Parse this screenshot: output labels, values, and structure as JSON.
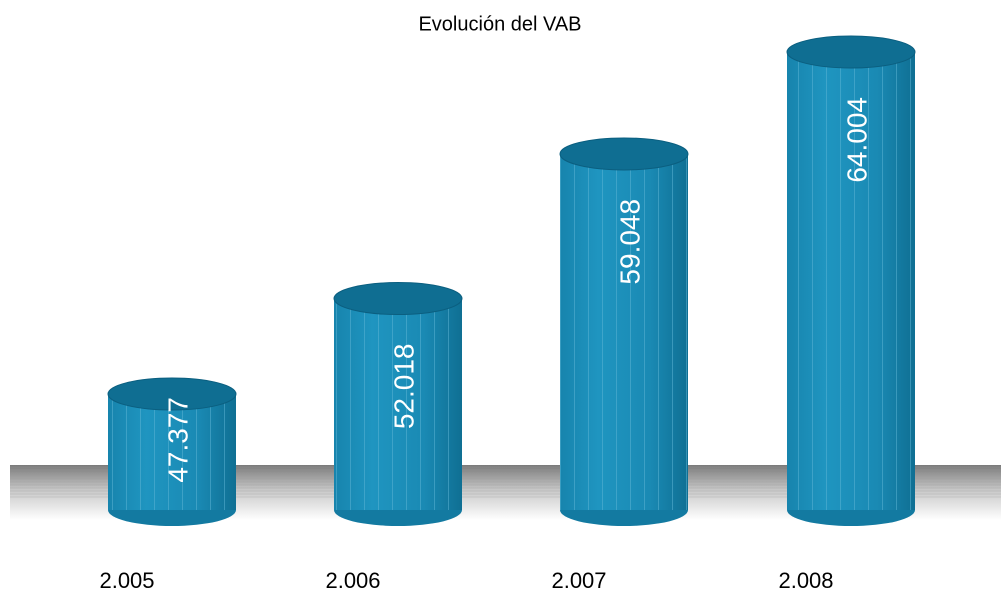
{
  "chart_data": {
    "type": "bar",
    "title": "Evolución del VAB",
    "categories": [
      "2.005",
      "2.006",
      "2.007",
      "2.008"
    ],
    "values": [
      47377,
      52018,
      59048,
      64004
    ],
    "value_labels": [
      "47.377",
      "52.018",
      "59.048",
      "64.004"
    ],
    "color": "#1a8cb6"
  }
}
